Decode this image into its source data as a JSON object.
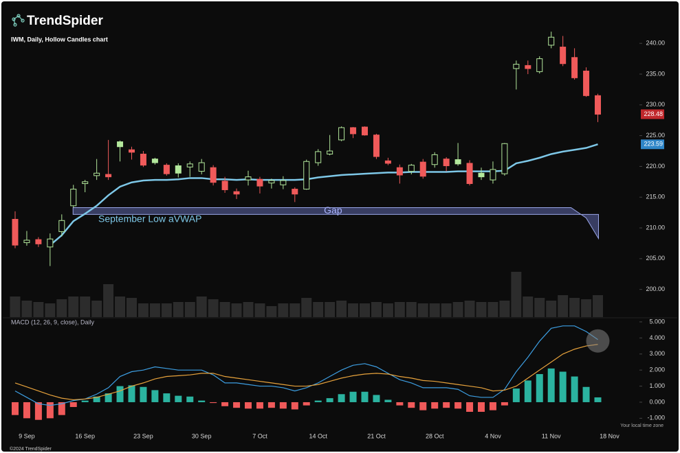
{
  "logo": "TrendSpider",
  "chart_data": {
    "type": "candlestick",
    "title": "IWM, Daily, Hollow Candles chart",
    "categories": [
      null,
      "9 Sep",
      null,
      null,
      null,
      null,
      "16 Sep",
      null,
      null,
      null,
      null,
      "23 Sep",
      null,
      null,
      null,
      null,
      "30 Sep",
      null,
      null,
      null,
      null,
      "7 Oct",
      null,
      null,
      null,
      null,
      "14 Oct",
      null,
      null,
      null,
      null,
      "21 Oct",
      null,
      null,
      null,
      null,
      "28 Oct",
      null,
      null,
      null,
      null,
      "4 Nov",
      null,
      null,
      null,
      null,
      "11 Nov",
      null,
      null,
      null,
      null,
      "18 Nov"
    ],
    "open": [
      211.4,
      207.6,
      208.1,
      206.9,
      209.4,
      213.6,
      217.2,
      218.5,
      218.7,
      224.0,
      222.7,
      222.0,
      221.2,
      220.2,
      220.1,
      219.9,
      219.2,
      219.8,
      217.6,
      215.9,
      217.8,
      217.9,
      217.3,
      217.0,
      216.3,
      216.3,
      220.6,
      222.0,
      224.3,
      226.3,
      226.4,
      225.1,
      220.9,
      219.8,
      219.2,
      220.7,
      220.3,
      221.2,
      221.1,
      220.5,
      218.9,
      217.8,
      218.8,
      235.9,
      236.4,
      235.4,
      239.7,
      239.4,
      237.7,
      235.5,
      231.5,
      null
    ],
    "high": [
      212.7,
      209.5,
      208.5,
      209.1,
      212.2,
      217.0,
      217.8,
      221.2,
      224.3,
      224.2,
      223.2,
      222.5,
      221.4,
      220.5,
      220.5,
      220.8,
      221.2,
      220.2,
      218.3,
      216.4,
      219.3,
      218.3,
      218.0,
      218.4,
      216.6,
      221.1,
      222.8,
      225.1,
      226.5,
      226.4,
      226.5,
      225.3,
      221.4,
      220.3,
      220.4,
      221.2,
      222.3,
      221.5,
      223.8,
      221.0,
      219.8,
      220.8,
      223.8,
      237.2,
      237.2,
      237.9,
      241.9,
      241.2,
      239.2,
      236.1,
      231.8,
      null
    ],
    "low": [
      206.7,
      207.1,
      206.9,
      203.8,
      208.6,
      213.3,
      215.8,
      217.8,
      217.8,
      220.8,
      221.1,
      219.9,
      220.3,
      218.5,
      218.2,
      218.3,
      218.7,
      216.9,
      215.7,
      214.7,
      216.9,
      215.6,
      216.4,
      216.3,
      214.2,
      216.2,
      220.1,
      221.8,
      224.1,
      224.6,
      225.0,
      221.2,
      220.2,
      217.2,
      218.7,
      218.0,
      219.8,
      219.2,
      220.1,
      216.9,
      217.8,
      217.2,
      218.5,
      232.5,
      235.0,
      235.1,
      239.2,
      236.3,
      234.1,
      231.3,
      227.2,
      null
    ],
    "close": [
      207.2,
      208.0,
      207.4,
      208.2,
      211.2,
      216.3,
      217.5,
      218.9,
      218.3,
      223.2,
      222.3,
      220.2,
      220.6,
      218.8,
      218.9,
      220.4,
      220.6,
      217.4,
      216.2,
      215.5,
      218.3,
      216.8,
      217.7,
      217.7,
      215.5,
      220.8,
      222.4,
      222.5,
      226.3,
      225.3,
      225.1,
      221.6,
      220.5,
      218.6,
      220.2,
      218.4,
      221.9,
      220.1,
      220.4,
      217.2,
      218.3,
      219.5,
      223.7,
      236.6,
      235.9,
      237.5,
      241.0,
      236.7,
      234.4,
      231.5,
      228.48,
      null
    ],
    "up_color": "#b3e89c",
    "down_color": "#f05a5a",
    "ylim": [
      195.5,
      243.7
    ],
    "yticks": [
      {
        "value": 200,
        "label": "200.00"
      },
      {
        "value": 205,
        "label": "205.00"
      },
      {
        "value": 210,
        "label": "210.00"
      },
      {
        "value": 215,
        "label": "215.00"
      },
      {
        "value": 220,
        "label": "220.00"
      },
      {
        "value": 225,
        "label": "225.00"
      },
      {
        "value": 230,
        "label": "230.00"
      },
      {
        "value": 235,
        "label": "235.00"
      },
      {
        "value": 240,
        "label": "240.00"
      }
    ],
    "series": [
      {
        "name": "September Low aVWAP",
        "color": "#7ec8e8",
        "values": [
          null,
          null,
          null,
          207.2,
          208.8,
          211.1,
          212.3,
          213.6,
          215.3,
          216.7,
          217.4,
          217.7,
          217.8,
          217.8,
          217.9,
          218.1,
          218.1,
          217.9,
          217.9,
          217.8,
          217.9,
          217.8,
          217.8,
          217.8,
          217.8,
          217.9,
          218.2,
          218.4,
          218.6,
          218.7,
          218.8,
          218.9,
          219.0,
          219.0,
          219.1,
          219.1,
          219.1,
          219.1,
          219.2,
          219.2,
          219.2,
          219.2,
          219.3,
          220.5,
          220.9,
          221.4,
          222.0,
          222.4,
          222.7,
          223.0,
          223.59,
          null
        ]
      }
    ],
    "annotations": [
      {
        "text": "Gap"
      }
    ],
    "volume": [
      30,
      24,
      22,
      20,
      26,
      30,
      30,
      24,
      48,
      30,
      28,
      20,
      20,
      20,
      22,
      22,
      30,
      26,
      22,
      20,
      22,
      20,
      16,
      20,
      20,
      28,
      22,
      22,
      24,
      20,
      20,
      22,
      20,
      22,
      22,
      20,
      20,
      20,
      22,
      24,
      22,
      22,
      24,
      66,
      30,
      28,
      24,
      32,
      28,
      26,
      32,
      null
    ],
    "volume_color": "#2c2c2c",
    "macd": {
      "title": "MACD (12, 26, 9, close), Daily",
      "ylim": [
        -1.54,
        5.17
      ],
      "yticks": [
        {
          "value": 5,
          "label": "5.000"
        },
        {
          "value": 4,
          "label": "4.000"
        },
        {
          "value": 3,
          "label": "3.000"
        },
        {
          "value": 2,
          "label": "2.000"
        },
        {
          "value": 1,
          "label": "1.000"
        },
        {
          "value": 0,
          "label": "0.000"
        },
        {
          "value": -1,
          "label": "-1.000"
        }
      ],
      "series": [
        {
          "color": "#3d9fe3",
          "values": [
            0.7,
            0.3,
            -0.1,
            -0.2,
            -0.1,
            0.1,
            0.2,
            0.5,
            0.9,
            1.6,
            1.9,
            2.0,
            2.2,
            2.1,
            2.0,
            2.0,
            2.0,
            1.7,
            1.2,
            1.2,
            1.1,
            1.0,
            1.0,
            0.9,
            0.7,
            0.9,
            1.2,
            1.6,
            2.0,
            2.3,
            2.4,
            2.2,
            1.8,
            1.4,
            1.2,
            0.9,
            0.9,
            0.9,
            0.8,
            0.4,
            0.3,
            0.3,
            0.8,
            1.9,
            2.8,
            3.8,
            4.6,
            4.75,
            4.75,
            4.4,
            3.9,
            null
          ]
        },
        {
          "color": "#e8a33c",
          "values": [
            1.2,
            0.95,
            0.7,
            0.45,
            0.25,
            0.15,
            0.2,
            0.3,
            0.5,
            0.7,
            1.0,
            1.2,
            1.45,
            1.6,
            1.65,
            1.7,
            1.8,
            1.8,
            1.6,
            1.5,
            1.4,
            1.3,
            1.2,
            1.1,
            1.0,
            1.0,
            1.1,
            1.3,
            1.5,
            1.65,
            1.75,
            1.8,
            1.75,
            1.6,
            1.5,
            1.35,
            1.3,
            1.2,
            1.1,
            1.0,
            0.9,
            0.7,
            0.75,
            1.0,
            1.5,
            2.0,
            2.5,
            3.0,
            3.3,
            3.5,
            3.6,
            null
          ]
        }
      ],
      "histogram": {
        "color": "#2bb3a0",
        "negative_color": "#f05a5a",
        "values": [
          -0.8,
          -1.0,
          -1.1,
          -1.0,
          -0.8,
          -0.3,
          0.1,
          0.35,
          0.55,
          1.0,
          1.05,
          0.95,
          0.75,
          0.55,
          0.4,
          0.35,
          0.1,
          -0.05,
          -0.25,
          -0.35,
          -0.4,
          -0.4,
          -0.35,
          -0.4,
          -0.45,
          -0.2,
          0.1,
          0.25,
          0.5,
          0.65,
          0.65,
          0.45,
          0.15,
          -0.2,
          -0.35,
          -0.5,
          -0.4,
          -0.35,
          -0.4,
          -0.6,
          -0.6,
          -0.5,
          -0.2,
          0.85,
          1.35,
          1.75,
          2.1,
          1.9,
          1.6,
          0.95,
          0.3,
          null
        ]
      }
    }
  },
  "timezone_note": "Your local time zone",
  "copyright": "©2024 TrendSpider"
}
